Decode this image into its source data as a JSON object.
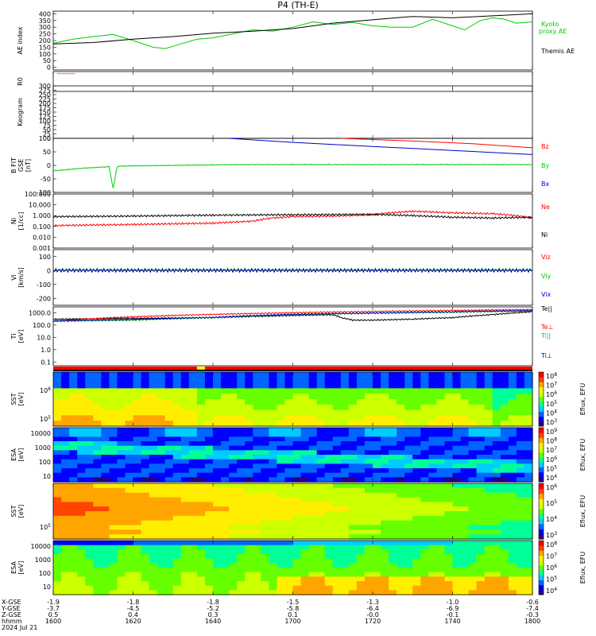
{
  "title": "P4 (TH-E)",
  "chart_data": [
    {
      "type": "line",
      "title": "",
      "ylabel": "AE index",
      "ylim": [
        -20,
        420
      ],
      "yticks": [
        "0",
        "50",
        "100",
        "150",
        "200",
        "250",
        "300",
        "350",
        "400"
      ],
      "xlim": [
        0,
        120
      ],
      "series": [
        {
          "name": "Kyoto proxy AE",
          "color": "#00cc00",
          "x": [
            0,
            5,
            10,
            15,
            20,
            25,
            28,
            32,
            36,
            40,
            45,
            50,
            55,
            60,
            65,
            70,
            75,
            80,
            85,
            90,
            95,
            100,
            103,
            107,
            110,
            113,
            116,
            120
          ],
          "y": [
            180,
            210,
            230,
            245,
            200,
            150,
            140,
            175,
            210,
            220,
            250,
            280,
            270,
            300,
            340,
            320,
            335,
            310,
            300,
            300,
            360,
            310,
            280,
            350,
            370,
            360,
            330,
            340
          ]
        },
        {
          "name": "Themis AE",
          "color": "#000000",
          "x": [
            0,
            10,
            20,
            30,
            40,
            50,
            60,
            70,
            80,
            90,
            100,
            110,
            120
          ],
          "y": [
            175,
            185,
            210,
            230,
            255,
            270,
            290,
            330,
            355,
            380,
            370,
            385,
            400
          ]
        }
      ]
    },
    {
      "type": "scatter",
      "ylabel": "R0",
      "x": [
        1,
        2,
        3,
        4,
        5,
        6,
        7,
        8,
        9,
        10
      ],
      "y": [
        0,
        0,
        0,
        0,
        0,
        0,
        0,
        0,
        0,
        0
      ],
      "color": "#ff4500"
    },
    {
      "type": "line",
      "ylabel": "Keogram",
      "ylim": [
        0,
        300
      ],
      "yticks": [
        "0",
        "25",
        "50",
        "75",
        "100",
        "125",
        "150",
        "175",
        "200",
        "225",
        "250",
        "275",
        "300"
      ]
    },
    {
      "type": "line",
      "ylabel": "B FIT GSE [nT]",
      "ylim": [
        -100,
        100
      ],
      "yticks": [
        "-100",
        "-50",
        "0",
        "50",
        "100"
      ],
      "xlim": [
        0,
        120
      ],
      "series": [
        {
          "name": "Bz",
          "color": "#ff0000",
          "x": [
            72,
            90,
            105,
            120
          ],
          "y": [
            100,
            90,
            80,
            65
          ]
        },
        {
          "name": "By",
          "color": "#00cc00",
          "x": [
            0,
            8,
            14,
            15,
            16,
            17,
            20,
            30,
            40,
            50,
            60,
            70,
            80,
            90,
            100,
            110,
            120
          ],
          "y": [
            -20,
            -10,
            -5,
            -85,
            -5,
            -3,
            -2,
            0,
            2,
            3,
            3,
            3,
            3,
            3,
            3,
            3,
            3
          ]
        },
        {
          "name": "Bx",
          "color": "#0000cc",
          "x": [
            44,
            60,
            80,
            100,
            120
          ],
          "y": [
            100,
            85,
            70,
            55,
            40
          ]
        }
      ]
    },
    {
      "type": "line",
      "ylabel": "Ni [1/cc]",
      "scale": "log",
      "ylim": [
        0.001,
        100
      ],
      "yticks": [
        "100.000",
        "10.000",
        "1.000",
        "0.100",
        "0.010",
        "0.001"
      ],
      "xlim": [
        0,
        120
      ],
      "series": [
        {
          "name": "Ne",
          "color": "#ff0000",
          "x": [
            0,
            20,
            40,
            50,
            55,
            60,
            70,
            80,
            90,
            100,
            110,
            120
          ],
          "y": [
            0.12,
            0.15,
            0.2,
            0.3,
            0.6,
            0.8,
            0.9,
            1.2,
            2.5,
            1.8,
            1.5,
            0.6
          ]
        },
        {
          "name": "Ni",
          "color": "#000000",
          "x": [
            0,
            20,
            40,
            60,
            80,
            90,
            100,
            110,
            120
          ],
          "y": [
            0.8,
            0.9,
            1.1,
            1.2,
            1.3,
            1.0,
            0.7,
            0.6,
            0.7
          ]
        }
      ]
    },
    {
      "type": "line",
      "ylabel": "Vi [km/s]",
      "ylim": [
        -250,
        150
      ],
      "yticks": [
        "100",
        "0",
        "-100",
        "-200"
      ],
      "xlim": [
        0,
        120
      ],
      "series": [
        {
          "name": "Viz",
          "color": "#ff0000",
          "x": [
            0,
            120
          ],
          "y": [
            0,
            0
          ]
        },
        {
          "name": "Viy",
          "color": "#00cc00",
          "x": [
            0,
            120
          ],
          "y": [
            5,
            5
          ]
        },
        {
          "name": "Vix",
          "color": "#0000cc",
          "x": [
            0,
            120
          ],
          "y": [
            0,
            0
          ]
        }
      ]
    },
    {
      "type": "line",
      "ylabel": "Ti [eV]",
      "scale": "log",
      "ylim": [
        0.05,
        3000
      ],
      "yticks": [
        "1000.0",
        "100.0",
        "10.0",
        "1.0",
        "0.1"
      ],
      "xlim": [
        0,
        120
      ],
      "series": [
        {
          "name": "Te||",
          "color": "#000000",
          "x": [
            0,
            20,
            40,
            50,
            60,
            70,
            72,
            75,
            80,
            90,
            100,
            110,
            120
          ],
          "y": [
            300,
            350,
            400,
            500,
            600,
            700,
            400,
            250,
            250,
            300,
            400,
            700,
            1200
          ]
        },
        {
          "name": "Te⊥",
          "color": "#ff0000",
          "x": [
            0,
            120
          ],
          "y": [
            200,
            1800
          ]
        },
        {
          "name": "Ti||",
          "color": "#00cc00",
          "x": [
            0,
            20,
            40,
            60,
            80,
            100,
            120
          ],
          "y": [
            200,
            250,
            400,
            700,
            900,
            1100,
            1400
          ]
        },
        {
          "name": "Ti⊥",
          "color": "#0000cc",
          "x": [
            0,
            20,
            40,
            60,
            80,
            100,
            120
          ],
          "y": [
            220,
            280,
            420,
            750,
            950,
            1200,
            1500
          ]
        }
      ]
    },
    {
      "type": "heatmap",
      "ylabel": "SST [eV]",
      "species": "e",
      "yticks": [
        "10^6",
        "10^5"
      ],
      "colorbar": {
        "label": "Eflux, EFU",
        "ticks": [
          "10^8",
          "10^7",
          "10^6",
          "10^5",
          "10^4",
          "10^3"
        ]
      }
    },
    {
      "type": "heatmap",
      "ylabel": "ESA [eV]",
      "species": "e",
      "yticks": [
        "10000",
        "1000",
        "100",
        "10"
      ],
      "colorbar": {
        "label": "Eflux, EFU",
        "ticks": [
          "10^9",
          "10^8",
          "10^7",
          "10^6",
          "10^5",
          "10^4"
        ]
      }
    },
    {
      "type": "heatmap",
      "ylabel": "SST [eV]",
      "species": "i",
      "yticks": [
        "10^5"
      ],
      "colorbar": {
        "label": "Eflux, EFU",
        "ticks": [
          "10^6",
          "10^5",
          "10^4",
          "10^3"
        ]
      }
    },
    {
      "type": "heatmap",
      "ylabel": "ESA [eV]",
      "species": "i",
      "yticks": [
        "10000",
        "1000",
        "100",
        "10"
      ],
      "colorbar": {
        "label": "Eflux, EFU",
        "ticks": [
          "10^8",
          "10^7",
          "10^6",
          "10^5",
          "10^4"
        ]
      }
    }
  ],
  "xaxis": {
    "row_labels": [
      "X-GSE",
      "Y-GSE",
      "Z-GSE",
      "hhmm",
      "2024 Jul 21"
    ],
    "columns": [
      {
        "x": 0,
        "vals": [
          "-1.9",
          "-3.7",
          "0.5",
          "1600"
        ]
      },
      {
        "x": 20,
        "vals": [
          "-1.8",
          "-4.5",
          "0.4",
          "1620"
        ]
      },
      {
        "x": 40,
        "vals": [
          "-1.8",
          "-5.2",
          "0.3",
          "1640"
        ]
      },
      {
        "x": 60,
        "vals": [
          "-1.5",
          "-5.8",
          "0.1",
          "1700"
        ]
      },
      {
        "x": 80,
        "vals": [
          "-1.3",
          "-6.4",
          "-0.0",
          "1720"
        ]
      },
      {
        "x": 100,
        "vals": [
          "-1.0",
          "-6.9",
          "-0.1",
          "1740"
        ]
      },
      {
        "x": 120,
        "vals": [
          "-0.6",
          "-7.4",
          "-0.3",
          "1800"
        ]
      }
    ]
  },
  "legend_labels": {
    "ae": [
      "Kyoto",
      "proxy AE",
      "Themis AE"
    ],
    "b": [
      "Bz",
      "By",
      "Bx"
    ],
    "n": [
      "Ne",
      "Ni"
    ],
    "v": [
      "Viz",
      "Viy",
      "Vix"
    ],
    "t": [
      "Te||",
      "Te⊥",
      "Ti||",
      "Ti⊥"
    ]
  },
  "colors": {
    "green": "#00cc00",
    "red": "#ff0000",
    "blue": "#0000cc",
    "black": "#000000",
    "orange": "#ff4500"
  }
}
